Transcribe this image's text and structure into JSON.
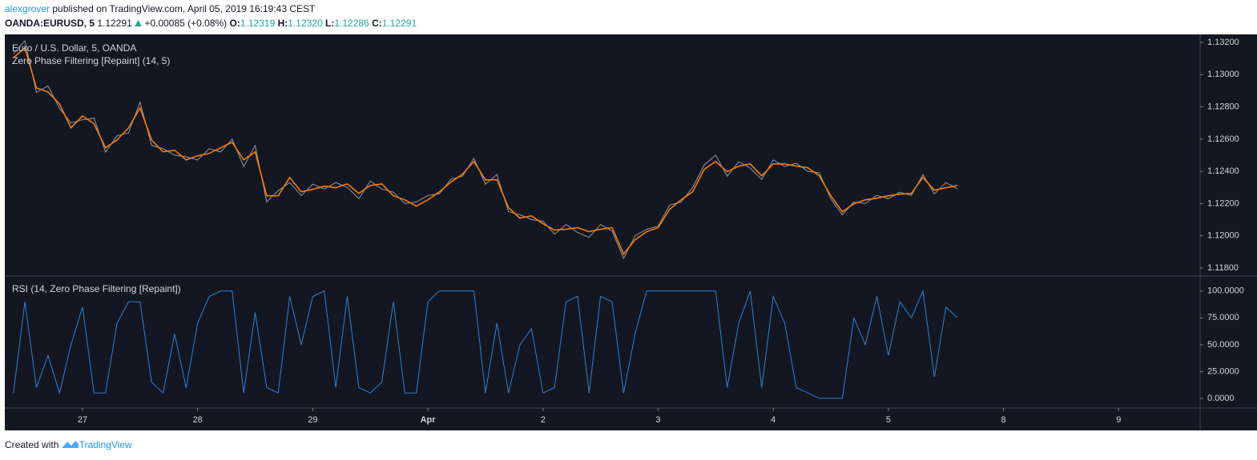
{
  "header": {
    "author": "alexgrover",
    "published": " published on TradingView.com, April 05, 2019 16:19:43 CEST",
    "quote": {
      "symbol": "OANDA:EURUSD, 5",
      "last": "1.12291",
      "change": "+0.00085 (+0.08%)",
      "ohlc": [
        {
          "label": "O:",
          "value": "1.12319"
        },
        {
          "label": "H:",
          "value": "1.12320"
        },
        {
          "label": "L:",
          "value": "1.12286"
        },
        {
          "label": "C:",
          "value": "1.12291"
        }
      ]
    }
  },
  "chart_data": [
    {
      "type": "line",
      "xlim": [
        -0.675,
        9.708
      ],
      "ylim": [
        1.1175,
        1.1325
      ],
      "yticks": [
        {
          "value": 1.118,
          "label": "1.11800"
        },
        {
          "value": 1.12,
          "label": "1.12000"
        },
        {
          "value": 1.122,
          "label": "1.12200"
        },
        {
          "value": 1.124,
          "label": "1.12400"
        },
        {
          "value": 1.126,
          "label": "1.12600"
        },
        {
          "value": 1.128,
          "label": "1.12800"
        },
        {
          "value": 1.13,
          "label": "1.13000"
        },
        {
          "value": 1.132,
          "label": "1.13200"
        }
      ],
      "x": [
        -0.6,
        -0.5,
        -0.4,
        -0.3,
        -0.2,
        -0.1,
        0,
        0.1,
        0.2,
        0.3,
        0.4,
        0.5,
        0.6,
        0.7,
        0.8,
        0.9,
        1,
        1.1,
        1.2,
        1.3,
        1.4,
        1.5,
        1.6,
        1.7,
        1.8,
        1.9,
        2,
        2.1,
        2.2,
        2.3,
        2.4,
        2.5,
        2.6,
        2.7,
        2.8,
        2.9,
        3,
        3.1,
        3.2,
        3.3,
        3.4,
        3.5,
        3.6,
        3.7,
        3.8,
        3.9,
        4,
        4.1,
        4.2,
        4.3,
        4.4,
        4.5,
        4.6,
        4.7,
        4.8,
        4.9,
        5,
        5.1,
        5.2,
        5.3,
        5.4,
        5.5,
        5.6,
        5.7,
        5.8,
        5.9,
        6,
        6.1,
        6.2,
        6.3,
        6.4,
        6.5,
        6.6,
        6.7,
        6.8,
        6.9,
        7,
        7.1,
        7.2,
        7.3,
        7.4,
        7.5,
        7.6
      ],
      "series": [
        {
          "name": "Euro / U.S. Dollar, 5, OANDA",
          "color": "#9598a1",
          "values": [
            1.1313,
            1.1321,
            1.1289,
            1.1293,
            1.1279,
            1.127,
            1.1272,
            1.1273,
            1.1252,
            1.1262,
            1.1264,
            1.1283,
            1.1256,
            1.1254,
            1.125,
            1.1249,
            1.1247,
            1.1254,
            1.1252,
            1.126,
            1.1243,
            1.1256,
            1.1221,
            1.1228,
            1.1233,
            1.1225,
            1.1232,
            1.1229,
            1.1233,
            1.123,
            1.1223,
            1.1234,
            1.1229,
            1.1227,
            1.122,
            1.1221,
            1.1225,
            1.1226,
            1.1235,
            1.1237,
            1.1248,
            1.1232,
            1.1238,
            1.1215,
            1.1213,
            1.121,
            1.1209,
            1.1201,
            1.1207,
            1.1202,
            1.1199,
            1.1207,
            1.1203,
            1.1186,
            1.12,
            1.1204,
            1.1206,
            1.1219,
            1.1221,
            1.123,
            1.1244,
            1.125,
            1.1237,
            1.1246,
            1.1242,
            1.1235,
            1.1247,
            1.1243,
            1.1245,
            1.124,
            1.1239,
            1.1223,
            1.1213,
            1.1221,
            1.122,
            1.1225,
            1.1223,
            1.1227,
            1.1225,
            1.1238,
            1.1226,
            1.1233,
            1.12291
          ]
        },
        {
          "name": "Zero Phase Filtering [Repaint] (14, 5)",
          "color": "#f57c00",
          "values": [
            1.13106,
            1.13166,
            1.12917,
            1.12893,
            1.12818,
            1.1267,
            1.12744,
            1.12694,
            1.12546,
            1.12595,
            1.1267,
            1.12794,
            1.12595,
            1.12521,
            1.12531,
            1.12471,
            1.12496,
            1.12511,
            1.12546,
            1.1258,
            1.12471,
            1.12521,
            1.12248,
            1.12248,
            1.12362,
            1.12273,
            1.12288,
            1.12308,
            1.12298,
            1.12322,
            1.12263,
            1.12312,
            1.12322,
            1.12248,
            1.12223,
            1.12184,
            1.12223,
            1.12273,
            1.12332,
            1.12382,
            1.12461,
            1.12347,
            1.12347,
            1.12174,
            1.12109,
            1.12124,
            1.12074,
            1.12035,
            1.1204,
            1.1205,
            1.12025,
            1.1204,
            1.1205,
            1.11886,
            1.11975,
            1.12025,
            1.1205,
            1.12164,
            1.12223,
            1.12273,
            1.12412,
            1.12461,
            1.12397,
            1.12432,
            1.12446,
            1.12372,
            1.12446,
            1.12446,
            1.12432,
            1.12422,
            1.12372,
            1.12248,
            1.12149,
            1.12198,
            1.12223,
            1.12233,
            1.12248,
            1.12258,
            1.12263,
            1.12362,
            1.12283,
            1.12298,
            1.12312
          ]
        }
      ]
    },
    {
      "type": "line",
      "xlim": [
        -0.675,
        9.708
      ],
      "ylim": [
        -9,
        114
      ],
      "yticks": [
        {
          "value": 0,
          "label": "0.0000"
        },
        {
          "value": 25,
          "label": "25.0000"
        },
        {
          "value": 50,
          "label": "50.0000"
        },
        {
          "value": 75,
          "label": "75.0000"
        },
        {
          "value": 100,
          "label": "100.0000"
        }
      ],
      "xticks": [
        {
          "value": 0,
          "label": "27"
        },
        {
          "value": 1,
          "label": "28"
        },
        {
          "value": 2,
          "label": "29"
        },
        {
          "value": 3,
          "label": "Apr"
        },
        {
          "value": 4,
          "label": "2"
        },
        {
          "value": 5,
          "label": "3"
        },
        {
          "value": 6,
          "label": "4"
        },
        {
          "value": 7,
          "label": "5"
        },
        {
          "value": 8,
          "label": "8"
        },
        {
          "value": 9,
          "label": "9"
        }
      ],
      "x": [
        -0.6,
        -0.5,
        -0.4,
        -0.3,
        -0.2,
        -0.1,
        0,
        0.1,
        0.2,
        0.3,
        0.4,
        0.5,
        0.6,
        0.7,
        0.8,
        0.9,
        1,
        1.1,
        1.2,
        1.3,
        1.4,
        1.5,
        1.6,
        1.7,
        1.8,
        1.9,
        2,
        2.1,
        2.2,
        2.3,
        2.4,
        2.5,
        2.6,
        2.7,
        2.8,
        2.9,
        3,
        3.1,
        3.2,
        3.3,
        3.4,
        3.5,
        3.6,
        3.7,
        3.8,
        3.9,
        4,
        4.1,
        4.2,
        4.3,
        4.4,
        4.5,
        4.6,
        4.7,
        4.8,
        4.9,
        5,
        5.1,
        5.2,
        5.3,
        5.4,
        5.5,
        5.6,
        5.7,
        5.8,
        5.9,
        6,
        6.1,
        6.2,
        6.3,
        6.4,
        6.5,
        6.6,
        6.7,
        6.8,
        6.9,
        7,
        7.1,
        7.2,
        7.3,
        7.4,
        7.5,
        7.6
      ],
      "series": [
        {
          "name": "RSI (14, Zero Phase Filtering [Repaint])",
          "color": "#2f7fd6",
          "values": [
            5,
            90,
            10,
            40,
            5,
            50,
            85,
            5,
            5,
            70,
            90,
            90,
            15,
            5,
            60,
            10,
            70,
            95,
            100,
            100,
            5,
            80,
            10,
            5,
            95,
            50,
            95,
            100,
            10,
            95,
            10,
            5,
            15,
            90,
            5,
            5,
            90,
            100,
            100,
            100,
            100,
            5,
            70,
            5,
            50,
            65,
            5,
            10,
            90,
            95,
            5,
            95,
            90,
            5,
            60,
            100,
            100,
            100,
            100,
            100,
            100,
            100,
            10,
            70,
            100,
            10,
            95,
            70,
            10,
            5,
            0,
            0,
            0,
            75,
            50,
            95,
            40,
            90,
            75,
            100,
            20,
            85,
            75
          ]
        }
      ]
    }
  ],
  "footer": {
    "text": "Created with",
    "brand": "TradingView"
  }
}
